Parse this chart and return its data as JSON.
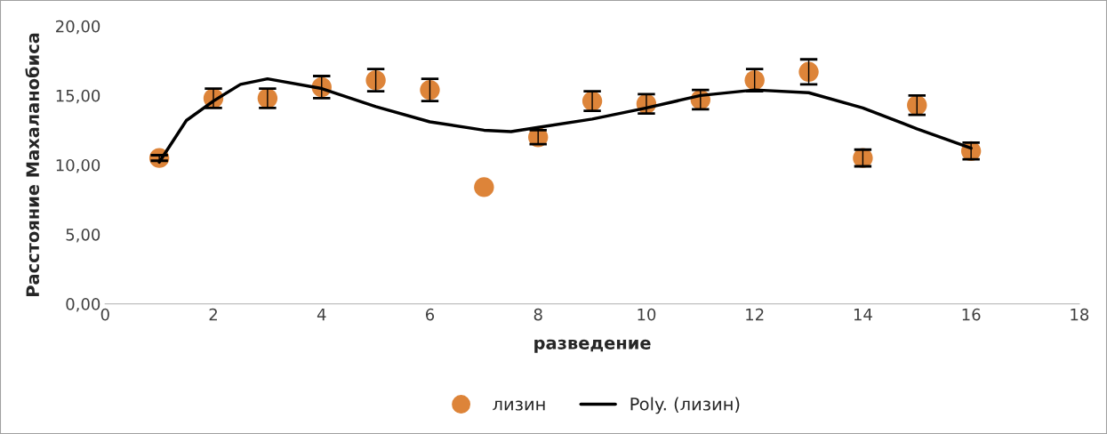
{
  "chart_data": {
    "type": "scatter",
    "xlabel": "разведение",
    "ylabel": "Расстояние Махаланобиса",
    "xlim": [
      0,
      18
    ],
    "xticks": [
      0,
      2,
      4,
      6,
      8,
      10,
      12,
      14,
      16,
      18
    ],
    "ylim": [
      0,
      20
    ],
    "yticks": [
      {
        "value": 0,
        "label": "0,00"
      },
      {
        "value": 5,
        "label": "5,00"
      },
      {
        "value": 10,
        "label": "10,00"
      },
      {
        "value": 15,
        "label": "15,00"
      },
      {
        "value": 20,
        "label": "20,00"
      }
    ],
    "grid": false,
    "legend": "bottom",
    "series": [
      {
        "name": "лизин",
        "color": "#dd8439",
        "marker": "circle",
        "x": [
          1,
          2,
          3,
          4,
          5,
          6,
          7,
          8,
          9,
          10,
          11,
          12,
          13,
          14,
          15,
          16
        ],
        "values": [
          10.5,
          14.8,
          14.8,
          15.6,
          16.1,
          15.4,
          8.4,
          12.0,
          14.6,
          14.4,
          14.7,
          16.1,
          16.7,
          10.5,
          14.3,
          11.0
        ],
        "errors": [
          0.2,
          0.7,
          0.7,
          0.8,
          0.8,
          0.8,
          null,
          0.5,
          0.7,
          0.7,
          0.7,
          0.8,
          0.9,
          0.6,
          0.7,
          0.6
        ]
      },
      {
        "name": "Poly. (лизин)",
        "type": "line",
        "color": "#000000",
        "marker": "none",
        "line_style": "solid",
        "x": [
          1,
          1.5,
          2,
          2.5,
          3,
          4,
          5,
          6,
          7,
          7.5,
          8,
          9,
          10,
          11,
          12,
          13,
          14,
          15,
          16
        ],
        "values": [
          10.2,
          13.2,
          14.6,
          15.8,
          16.2,
          15.5,
          14.2,
          13.1,
          12.5,
          12.4,
          12.7,
          13.3,
          14.1,
          15.0,
          15.4,
          15.2,
          14.1,
          12.6,
          11.2
        ]
      }
    ]
  }
}
